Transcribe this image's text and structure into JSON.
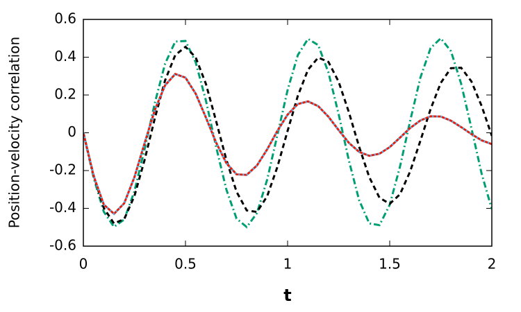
{
  "chart_data": {
    "type": "line",
    "xlabel": "t",
    "ylabel": "Position-velocity correlation",
    "xlim": [
      0,
      2
    ],
    "ylim": [
      -0.6,
      0.6
    ],
    "xticks": [
      0,
      0.5,
      1,
      1.5,
      2
    ],
    "yticks": [
      -0.6,
      -0.4,
      -0.2,
      0,
      0.2,
      0.4,
      0.6
    ],
    "grid": false,
    "x": [
      0,
      0.05,
      0.1,
      0.15,
      0.2,
      0.25,
      0.3,
      0.35,
      0.4,
      0.45,
      0.5,
      0.55,
      0.6,
      0.65,
      0.7,
      0.75,
      0.8,
      0.85,
      0.9,
      0.95,
      1,
      1.05,
      1.1,
      1.15,
      1.2,
      1.25,
      1.3,
      1.35,
      1.4,
      1.45,
      1.5,
      1.55,
      1.6,
      1.65,
      1.7,
      1.75,
      1.8,
      1.85,
      1.9,
      1.95,
      2
    ],
    "series": [
      {
        "color": "#009e73",
        "dash": "dashdot",
        "values": [
          0,
          -0.237,
          -0.418,
          -0.498,
          -0.459,
          -0.31,
          -0.086,
          0.158,
          0.365,
          0.483,
          0.486,
          0.373,
          0.171,
          -0.074,
          -0.3,
          -0.454,
          -0.499,
          -0.425,
          -0.248,
          -0.012,
          0.226,
          0.411,
          0.497,
          0.464,
          0.319,
          0.098,
          -0.146,
          -0.356,
          -0.48,
          -0.489,
          -0.381,
          -0.181,
          0.062,
          0.291,
          0.448,
          0.5,
          0.432,
          0.259,
          0.025,
          -0.216,
          -0.404
        ]
      },
      {
        "color": "#000000",
        "dash": "dashed",
        "values": [
          0,
          -0.225,
          -0.398,
          -0.48,
          -0.457,
          -0.335,
          -0.143,
          0.077,
          0.277,
          0.411,
          0.455,
          0.399,
          0.259,
          0.062,
          -0.142,
          -0.312,
          -0.411,
          -0.419,
          -0.336,
          -0.181,
          0.01,
          0.195,
          0.334,
          0.398,
          0.375,
          0.27,
          0.109,
          -0.073,
          -0.235,
          -0.344,
          -0.376,
          -0.326,
          -0.205,
          -0.043,
          0.125,
          0.264,
          0.342,
          0.344,
          0.272,
          0.142,
          -0.016
        ]
      },
      {
        "color": "#e51e10",
        "dash": "solid",
        "values": [
          0,
          -0.227,
          -0.38,
          -0.429,
          -0.373,
          -0.235,
          -0.055,
          0.121,
          0.251,
          0.311,
          0.292,
          0.207,
          0.081,
          -0.052,
          -0.16,
          -0.22,
          -0.223,
          -0.173,
          -0.088,
          0.01,
          0.096,
          0.152,
          0.166,
          0.141,
          0.085,
          0.014,
          -0.053,
          -0.101,
          -0.122,
          -0.111,
          -0.076,
          -0.026,
          0.025,
          0.065,
          0.087,
          0.086,
          0.064,
          0.03,
          -0.007,
          -0.04,
          -0.06
        ]
      },
      {
        "color": "#56b4e9",
        "dash": "dotted",
        "values": [
          0,
          -0.227,
          -0.38,
          -0.429,
          -0.373,
          -0.235,
          -0.055,
          0.121,
          0.251,
          0.311,
          0.292,
          0.207,
          0.081,
          -0.052,
          -0.16,
          -0.22,
          -0.223,
          -0.173,
          -0.088,
          0.01,
          0.096,
          0.152,
          0.166,
          0.141,
          0.085,
          0.014,
          -0.053,
          -0.101,
          -0.122,
          -0.111,
          -0.076,
          -0.026,
          0.025,
          0.065,
          0.087,
          0.086,
          0.064,
          0.03,
          -0.007,
          -0.04,
          -0.06
        ]
      }
    ]
  }
}
